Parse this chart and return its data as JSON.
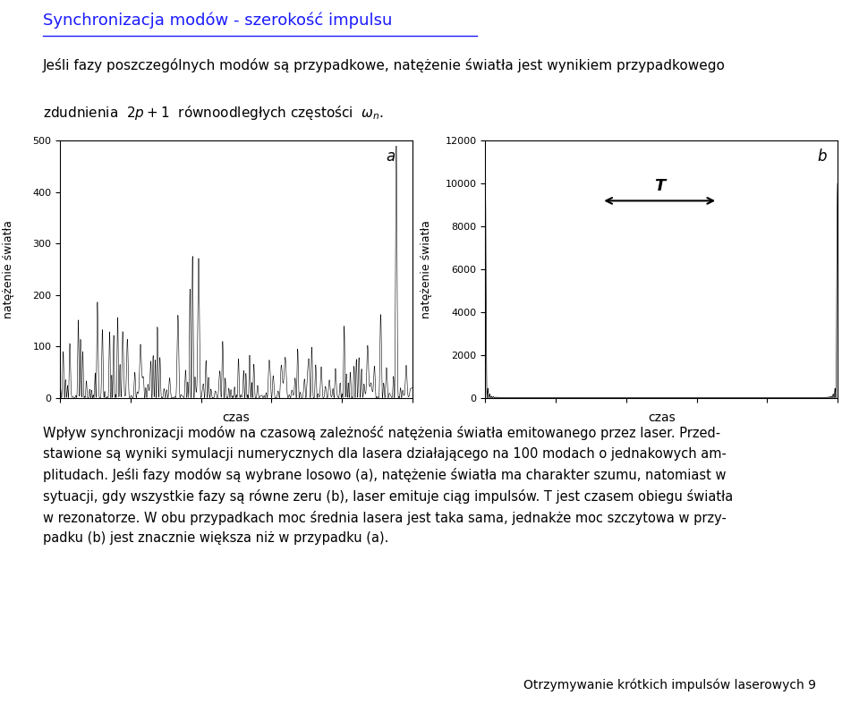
{
  "title": "Synchronizacja modów - szerokość impulsu",
  "title_color": "#1a1aff",
  "para1": "Jeśli fazy poszczególnych modów są przypadkowe, natężenie światła jest wynikiem przypadkowego",
  "para1b": "zdudnienia  $2p+1$  równoodległych częstości  $\\omega_n$.",
  "ylabel_a": "natężenie światła",
  "xlabel_a": "czas",
  "label_a": "a",
  "ylim_a": [
    0,
    500
  ],
  "yticks_a": [
    0,
    100,
    200,
    300,
    400,
    500
  ],
  "ylabel_b": "natężenie światła",
  "xlabel_b": "czas",
  "label_b": "b",
  "ylim_b": [
    0,
    12000
  ],
  "yticks_b": [
    0,
    2000,
    4000,
    6000,
    8000,
    10000,
    12000
  ],
  "T_label": "T",
  "para2": "Wpływ synchronizacji modów na czasową zależność natężenia światła emitowanego przez laser. Przed-",
  "para2b": "stawione są wyniki symulacji numerycznych dla lasera działającego na 100 modach o jednakowych am-",
  "para2c": "plitudach. Jeśli fazy modów są wybrane losowo (a), natężenie światła ma charakter szumu, natomiast w",
  "para2d": "sytuacji, gdy wszystkie fazy są równe zeru (b), laser emituje ciąg impulsów. T jest czasem obiegu światła",
  "para2e": "w rezonatorze. W obu przypadkach moc średnia lasera jest taka sama, jednakże moc szczytowa w przy-",
  "para2f": "padku (b) jest znacznie większa niż w przypadku (a).",
  "footer": "Otrzymywanie krótkich impulsów laserowych 9",
  "num_modes": 100,
  "random_seed": 42,
  "bg_color": "#ffffff",
  "plot_line_color": "#000000",
  "spike_peak_b": 10000
}
